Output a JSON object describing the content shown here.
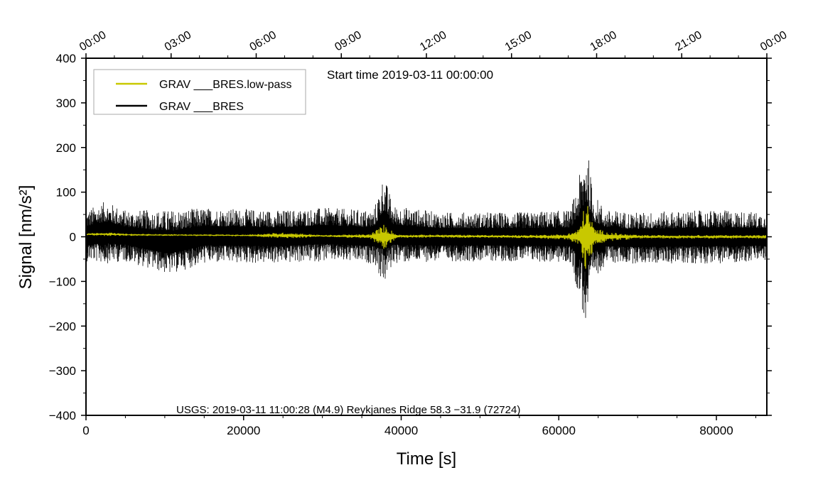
{
  "chart_data": {
    "type": "line",
    "title": "Start time 2019-03-11 00:00:00",
    "annotation": "USGS: 2019-03-11 11:00:28 (M4.9) Reykjanes Ridge 58.3 −31.9 (72724)",
    "xlabel": "Time [s]",
    "ylabel": "Signal [nm/s²]",
    "xlim": [
      0,
      86400
    ],
    "ylim": [
      -400,
      400
    ],
    "x_ticks": [
      0,
      20000,
      40000,
      60000,
      80000
    ],
    "x_tick_labels": [
      "0",
      "20000",
      "40000",
      "60000",
      "80000"
    ],
    "y_ticks": [
      400,
      300,
      200,
      100,
      0,
      -100,
      -200,
      -300,
      -400
    ],
    "y_tick_labels": [
      "400",
      "300",
      "200",
      "100",
      "0",
      "−100",
      "−200",
      "−300",
      "−400"
    ],
    "top_axis_ticks_s": [
      0,
      10800,
      21600,
      32400,
      43200,
      54000,
      64800,
      75600,
      86400
    ],
    "top_axis_labels": [
      "00:00",
      "03:00",
      "06:00",
      "09:00",
      "12:00",
      "15:00",
      "18:00",
      "21:00",
      "00:00"
    ],
    "legend_position": "top-left",
    "series": [
      {
        "name": "GRAV ___BRES.low-pass",
        "color": "#c8c800",
        "envelope": {
          "t": [
            0,
            2500,
            5000,
            10000,
            20000,
            25500,
            30000,
            36000,
            37800,
            39500,
            45000,
            55000,
            61000,
            62500,
            63500,
            64500,
            66500,
            70000,
            80000,
            86400
          ],
          "max": [
            8,
            10,
            7,
            6,
            5,
            10,
            4,
            6,
            28,
            5,
            5,
            4,
            6,
            18,
            85,
            20,
            10,
            4,
            4,
            4
          ],
          "min": [
            3,
            2,
            2,
            2,
            1,
            -4,
            0,
            -4,
            -30,
            -2,
            -2,
            -3,
            -6,
            -18,
            -85,
            -20,
            -10,
            -4,
            -4,
            -4
          ]
        }
      },
      {
        "name": "GRAV ___BRES",
        "color": "#000000",
        "envelope": {
          "t": [
            0,
            2500,
            5000,
            10600,
            15000,
            25000,
            30000,
            36500,
            37800,
            39000,
            45000,
            55000,
            61500,
            62800,
            63500,
            64300,
            66000,
            70000,
            80000,
            86400
          ],
          "max": [
            60,
            80,
            60,
            60,
            65,
            60,
            65,
            60,
            140,
            70,
            55,
            55,
            60,
            150,
            222,
            100,
            60,
            55,
            60,
            55
          ],
          "min": [
            -55,
            -60,
            -55,
            -85,
            -60,
            -60,
            -55,
            -60,
            -110,
            -60,
            -55,
            -55,
            -60,
            -150,
            -215,
            -100,
            -60,
            -60,
            -60,
            -55
          ]
        }
      }
    ]
  }
}
